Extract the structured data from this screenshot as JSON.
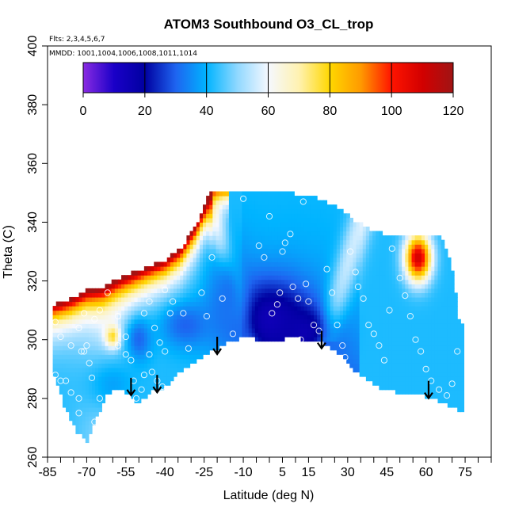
{
  "chart_data": {
    "type": "heatmap",
    "title": "ATOM3 Southbound O3_CL_trop",
    "annotations": {
      "flights": "Flts: 2,3,4,5,6,7",
      "dates": "MMDD: 1001,1004,1006,1008,1011,1014"
    },
    "xlabel": "Latitude (deg N)",
    "ylabel": "Theta (C)",
    "xlim": [
      -85,
      85
    ],
    "ylim": [
      260,
      400
    ],
    "x_ticks_labeled": [
      "-85",
      "-70",
      "-55",
      "-40",
      "-25",
      "-10",
      "5",
      "15",
      "30",
      "45",
      "60",
      "75"
    ],
    "x_ticks_labeled_values": [
      -85,
      -70,
      -55,
      -40,
      -25,
      -10,
      5,
      15,
      30,
      45,
      60,
      75
    ],
    "y_ticks": [
      "260",
      "280",
      "300",
      "320",
      "340",
      "360",
      "380",
      "400"
    ],
    "y_ticks_values": [
      260,
      280,
      300,
      320,
      340,
      360,
      380,
      400
    ],
    "colorbar": {
      "range": [
        0,
        120
      ],
      "ticks": [
        "0",
        "20",
        "40",
        "60",
        "80",
        "100",
        "120"
      ],
      "tick_values": [
        0,
        20,
        40,
        60,
        80,
        100,
        120
      ],
      "stops": [
        {
          "v": 0,
          "c": "#8a2be2"
        },
        {
          "v": 10,
          "c": "#1a00c8"
        },
        {
          "v": 20,
          "c": "#0000a0"
        },
        {
          "v": 30,
          "c": "#1e64f0"
        },
        {
          "v": 40,
          "c": "#00b4ff"
        },
        {
          "v": 50,
          "c": "#90d8ff"
        },
        {
          "v": 60,
          "c": "#f5f8ff"
        },
        {
          "v": 70,
          "c": "#fff2b0"
        },
        {
          "v": 80,
          "c": "#ffd700"
        },
        {
          "v": 90,
          "c": "#ff9a00"
        },
        {
          "v": 100,
          "c": "#ff1400"
        },
        {
          "v": 110,
          "c": "#d20000"
        },
        {
          "v": 120,
          "c": "#a01414"
        }
      ]
    },
    "field": {
      "top_boundary": [
        [
          -82,
          312
        ],
        [
          -76,
          314
        ],
        [
          -70,
          317
        ],
        [
          -64,
          318
        ],
        [
          -58,
          321
        ],
        [
          -52,
          323
        ],
        [
          -46,
          325
        ],
        [
          -40,
          327
        ],
        [
          -34,
          331
        ],
        [
          -28,
          339
        ],
        [
          -23,
          350
        ],
        [
          -16,
          350
        ],
        [
          -10,
          350
        ],
        [
          -4,
          351
        ],
        [
          2,
          351
        ],
        [
          8,
          350
        ],
        [
          14,
          349
        ],
        [
          20,
          348
        ],
        [
          26,
          345
        ],
        [
          32,
          341
        ],
        [
          38,
          338
        ],
        [
          44,
          336
        ],
        [
          50,
          335
        ],
        [
          56,
          336
        ],
        [
          62,
          336
        ],
        [
          66,
          335
        ],
        [
          70,
          325
        ],
        [
          73,
          305
        ]
      ],
      "bottom_boundary": [
        [
          -82,
          287
        ],
        [
          -78,
          276
        ],
        [
          -74,
          269
        ],
        [
          -70,
          265
        ],
        [
          -66,
          274
        ],
        [
          -62,
          282
        ],
        [
          -58,
          283
        ],
        [
          -54,
          282
        ],
        [
          -50,
          278
        ],
        [
          -46,
          282
        ],
        [
          -40,
          284
        ],
        [
          -34,
          289
        ],
        [
          -28,
          293
        ],
        [
          -22,
          296
        ],
        [
          -16,
          299
        ],
        [
          -10,
          301
        ],
        [
          -4,
          300
        ],
        [
          2,
          299
        ],
        [
          8,
          301
        ],
        [
          14,
          300
        ],
        [
          20,
          299
        ],
        [
          26,
          296
        ],
        [
          32,
          290
        ],
        [
          38,
          286
        ],
        [
          44,
          283
        ],
        [
          50,
          282
        ],
        [
          56,
          282
        ],
        [
          62,
          280
        ],
        [
          68,
          278
        ],
        [
          73,
          276
        ]
      ],
      "anomalies": [
        {
          "lat": 0,
          "theta": 307,
          "value": 14,
          "sx": 16,
          "st": 14
        },
        {
          "lat": 13,
          "theta": 303,
          "value": 16,
          "sx": 10,
          "st": 8
        },
        {
          "lat": -16,
          "theta": 315,
          "value": 32,
          "sx": 8,
          "st": 18
        },
        {
          "lat": -60,
          "theta": 301,
          "value": 82,
          "sx": 3,
          "st": 4
        },
        {
          "lat": -50,
          "theta": 300,
          "value": 30,
          "sx": 5,
          "st": 8
        },
        {
          "lat": 57,
          "theta": 328,
          "value": 110,
          "sx": 5,
          "st": 8
        },
        {
          "lat": -32,
          "theta": 305,
          "value": 30,
          "sx": 10,
          "st": 8
        },
        {
          "lat": -60,
          "theta": 285,
          "value": 38,
          "sx": 12,
          "st": 10
        }
      ]
    },
    "arrows": [
      {
        "lat": -53,
        "theta": 287
      },
      {
        "lat": -43,
        "theta": 288
      },
      {
        "lat": -20,
        "theta": 301
      },
      {
        "lat": 20,
        "theta": 303
      },
      {
        "lat": 61,
        "theta": 286
      }
    ],
    "observations": [
      [
        -82,
        288
      ],
      [
        -80,
        286
      ],
      [
        -78,
        286
      ],
      [
        -76,
        282
      ],
      [
        -77,
        270
      ],
      [
        -73,
        275
      ],
      [
        -73,
        280
      ],
      [
        -72,
        296
      ],
      [
        -71,
        296
      ],
      [
        -70,
        298
      ],
      [
        -69,
        292
      ],
      [
        -68,
        287
      ],
      [
        -67,
        272
      ],
      [
        -65,
        280
      ],
      [
        -82,
        306
      ],
      [
        -80,
        301
      ],
      [
        -76,
        298
      ],
      [
        -73,
        304
      ],
      [
        -71,
        309
      ],
      [
        -67,
        307
      ],
      [
        -65,
        310
      ],
      [
        -62,
        316
      ],
      [
        -58,
        298
      ],
      [
        -58,
        308
      ],
      [
        -55,
        301
      ],
      [
        -55,
        295
      ],
      [
        -53,
        293
      ],
      [
        -52,
        286
      ],
      [
        -51,
        280
      ],
      [
        -49,
        283
      ],
      [
        -48,
        288
      ],
      [
        -46,
        295
      ],
      [
        -45,
        289
      ],
      [
        -43,
        286
      ],
      [
        -41,
        284
      ],
      [
        -40,
        296
      ],
      [
        -48,
        309
      ],
      [
        -46,
        313
      ],
      [
        -44,
        304
      ],
      [
        -42,
        299
      ],
      [
        -40,
        317
      ],
      [
        -38,
        309
      ],
      [
        -37,
        313
      ],
      [
        -31,
        297
      ],
      [
        -33,
        309
      ],
      [
        -24,
        308
      ],
      [
        -26,
        316
      ],
      [
        -22,
        328
      ],
      [
        -18,
        314
      ],
      [
        -14,
        302
      ],
      [
        -10,
        348
      ],
      [
        -4,
        332
      ],
      [
        -2,
        328
      ],
      [
        0,
        342
      ],
      [
        1,
        309
      ],
      [
        3,
        312
      ],
      [
        4,
        316
      ],
      [
        5,
        330
      ],
      [
        6,
        333
      ],
      [
        8,
        336
      ],
      [
        9,
        318
      ],
      [
        11,
        314
      ],
      [
        12,
        300
      ],
      [
        13,
        347
      ],
      [
        14,
        319
      ],
      [
        15,
        313
      ],
      [
        17,
        305
      ],
      [
        19,
        303
      ],
      [
        20,
        296
      ],
      [
        22,
        324
      ],
      [
        24,
        316
      ],
      [
        26,
        305
      ],
      [
        28,
        298
      ],
      [
        29,
        294
      ],
      [
        31,
        330
      ],
      [
        33,
        323
      ],
      [
        34,
        318
      ],
      [
        36,
        314
      ],
      [
        38,
        305
      ],
      [
        40,
        302
      ],
      [
        42,
        298
      ],
      [
        44,
        293
      ],
      [
        46,
        310
      ],
      [
        47,
        331
      ],
      [
        50,
        321
      ],
      [
        52,
        315
      ],
      [
        54,
        308
      ],
      [
        56,
        300
      ],
      [
        58,
        296
      ],
      [
        60,
        290
      ],
      [
        62,
        286
      ],
      [
        65,
        283
      ],
      [
        68,
        281
      ],
      [
        70,
        285
      ],
      [
        72,
        296
      ]
    ]
  }
}
